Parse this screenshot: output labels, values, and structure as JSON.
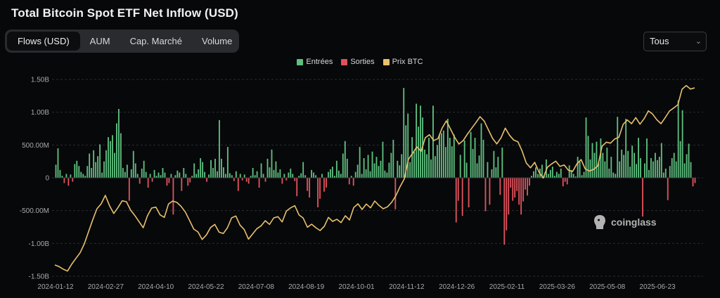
{
  "title": "Total Bitcoin Spot ETF Net Inflow (USD)",
  "tabs": [
    {
      "label": "Flows (USD)",
      "active": true
    },
    {
      "label": "AUM",
      "active": false
    },
    {
      "label": "Cap. Marché",
      "active": false
    },
    {
      "label": "Volume",
      "active": false
    }
  ],
  "range_select": {
    "value": "Tous",
    "icon": "chevron-updown-icon"
  },
  "legend": [
    {
      "label": "Entrées",
      "color": "#5fbf7f"
    },
    {
      "label": "Sorties",
      "color": "#e0525b"
    },
    {
      "label": "Prix BTC",
      "color": "#e8c16d"
    }
  ],
  "watermark": {
    "text": "coinglass",
    "icon": "coinglass-logo-icon"
  },
  "chart_data": {
    "type": "bar",
    "title": "Total Bitcoin Spot ETF Net Inflow (USD)",
    "xlabel": "",
    "ylabel": "",
    "grid": true,
    "legend_position": "top-center",
    "ylim": [
      -1500000000,
      1500000000
    ],
    "y_ticks": [
      1500000000,
      1000000000,
      500000000,
      0,
      -500000000,
      -1000000000,
      -1500000000
    ],
    "y_tick_labels": [
      "1.50B",
      "1.00B",
      "500.00M",
      "0",
      "-500.00M",
      "-1.00B",
      "-1.50B"
    ],
    "x_tick_labels": [
      "2024-01-12",
      "2024-02-27",
      "2024-04-10",
      "2024-05-22",
      "2024-07-08",
      "2024-08-19",
      "2024-10-01",
      "2024-11-12",
      "2024-12-26",
      "2025-02-11",
      "2025-03-26",
      "2025-05-08",
      "2025-06-23"
    ],
    "flows_musd": [
      200,
      450,
      120,
      30,
      -80,
      60,
      -120,
      50,
      -60,
      210,
      260,
      180,
      90,
      60,
      30,
      180,
      370,
      150,
      420,
      240,
      330,
      510,
      80,
      250,
      420,
      620,
      560,
      650,
      380,
      830,
      1050,
      680,
      150,
      90,
      200,
      -350,
      130,
      410,
      220,
      60,
      -90,
      140,
      260,
      90,
      -150,
      60,
      -60,
      120,
      30,
      80,
      40,
      150,
      80,
      -120,
      -80,
      60,
      -560,
      40,
      110,
      80,
      -200,
      150,
      60,
      -120,
      -70,
      30,
      220,
      60,
      130,
      300,
      240,
      90,
      -60,
      50,
      270,
      150,
      290,
      100,
      880,
      290,
      160,
      60,
      470,
      70,
      40,
      -50,
      100,
      -200,
      60,
      -40,
      50,
      -60,
      -90,
      30,
      150,
      40,
      100,
      -150,
      220,
      60,
      -60,
      290,
      160,
      430,
      120,
      250,
      80,
      130,
      -90,
      60,
      -40,
      80,
      140,
      60,
      -50,
      -280,
      30,
      70,
      240,
      40,
      -200,
      -300,
      120,
      80,
      40,
      -450,
      -320,
      60,
      -210,
      -150,
      90,
      130,
      170,
      30,
      260,
      110,
      60,
      370,
      560,
      290,
      -100,
      30,
      -120,
      90,
      200,
      470,
      60,
      300,
      130,
      350,
      100,
      400,
      220,
      320,
      180,
      260,
      550,
      110,
      80,
      230,
      380,
      580,
      -480,
      260,
      190,
      360,
      1370,
      800,
      980,
      240,
      620,
      400,
      1130,
      780,
      1100,
      920,
      430,
      360,
      610,
      280,
      1100,
      330,
      500,
      660,
      680,
      720,
      470,
      900,
      610,
      480,
      660,
      -680,
      -350,
      350,
      -580,
      570,
      230,
      -450,
      700,
      440,
      610,
      220,
      340,
      830,
      580,
      -510,
      240,
      -410,
      130,
      410,
      160,
      320,
      -260,
      460,
      -1020,
      -800,
      -560,
      -150,
      -350,
      -300,
      -200,
      -410,
      -560,
      -360,
      -180,
      -270,
      -120,
      30,
      100,
      160,
      60,
      140,
      200,
      30,
      280,
      60,
      120,
      170,
      30,
      90,
      60,
      140,
      -130,
      -60,
      -100,
      190,
      120,
      60,
      20,
      320,
      250,
      40,
      90,
      920,
      640,
      280,
      530,
      380,
      550,
      230,
      600,
      380,
      250,
      460,
      140,
      320,
      80,
      60,
      930,
      250,
      430,
      350,
      900,
      410,
      170,
      490,
      380,
      210,
      610,
      300,
      -590,
      220,
      600,
      120,
      300,
      250,
      380,
      270,
      320,
      530,
      80,
      140,
      -340,
      180,
      300,
      380,
      250,
      1180,
      560,
      1030,
      220,
      360,
      520,
      240,
      -130,
      -80
    ],
    "btc_price_usd": [
      42800,
      42100,
      41000,
      40200,
      43100,
      45600,
      48000,
      51800,
      57000,
      62100,
      66800,
      68900,
      72500,
      68100,
      64800,
      67300,
      70200,
      69800,
      66200,
      63900,
      61300,
      58700,
      63800,
      67100,
      67500,
      64200,
      63100,
      68800,
      70100,
      69500,
      67800,
      65400,
      61800,
      58100,
      56900,
      53700,
      55600,
      58800,
      60100,
      56800,
      56200,
      58700,
      62900,
      63700,
      59800,
      57900,
      53800,
      56100,
      58300,
      59500,
      61700,
      60100,
      62900,
      63400,
      61200,
      65800,
      67200,
      68100,
      64200,
      62800,
      58900,
      60200,
      58700,
      57500,
      59300,
      63100,
      61400,
      62300,
      60900,
      63800,
      62000,
      67300,
      68900,
      66500,
      68800,
      67200,
      70100,
      68200,
      66800,
      67600,
      69500,
      72300,
      76200,
      79500,
      87900,
      90500,
      93200,
      91300,
      97100,
      98400,
      95900,
      96700,
      101200,
      104300,
      100800,
      97200,
      94400,
      95900,
      98600,
      101100,
      103500,
      106100,
      104200,
      100500,
      96800,
      94500,
      97100,
      101200,
      98200,
      96100,
      95400,
      91500,
      86300,
      84300,
      86600,
      82500,
      79900,
      84500,
      85900,
      87100,
      84900,
      85500,
      83200,
      82700,
      85900,
      87800,
      83800,
      82900,
      83600,
      85100,
      93500,
      95200,
      94800,
      96600,
      97300,
      102800,
      104700,
      103100,
      105700,
      102900,
      105300,
      108600,
      107200,
      104800,
      103100,
      105700,
      108500,
      109800,
      111200,
      117800,
      119400,
      117900,
      118400
    ]
  }
}
